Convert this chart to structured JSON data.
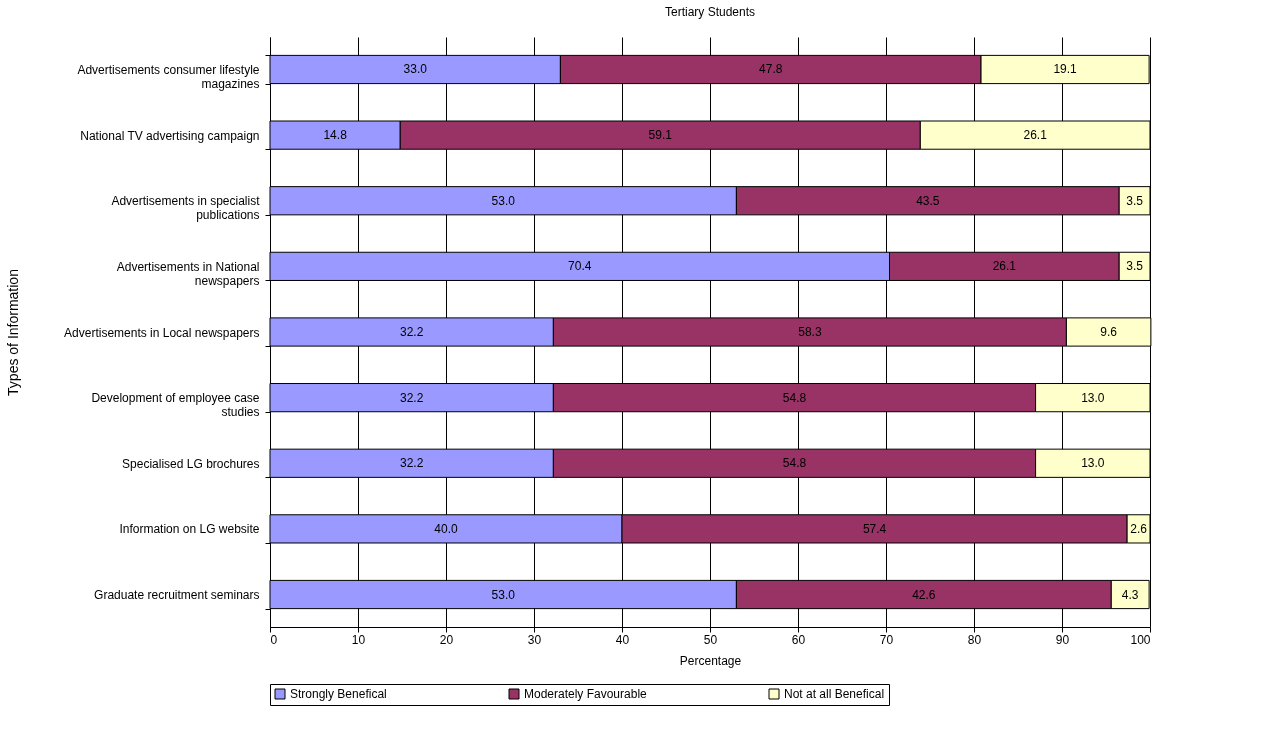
{
  "chart_data": {
    "type": "bar",
    "orientation": "horizontal",
    "stacked": true,
    "title": "Tertiary Students",
    "xlabel": "Percentage",
    "ylabel": "Types of Information",
    "categories": [
      "Advertisements consumer lifestyle magazines",
      "National TV advertising campaign",
      "Advertisements in specialist publications",
      "Advertisements in National newspapers",
      "Advertisements in Local newspapers",
      "Development of employee case studies",
      "Specialised LG brochures",
      "Information on LG website",
      "Graduate recruitment seminars"
    ],
    "series": [
      {
        "name": "Strongly Benefical",
        "color": "#9999ff",
        "values": [
          33.0,
          14.8,
          53.0,
          70.4,
          32.2,
          32.2,
          32.2,
          40.0,
          53.0
        ],
        "value_labels": [
          "33.0",
          "14.8",
          "53.0",
          "70.4",
          "32.2",
          "32.2",
          "32.2",
          "40.0",
          "53.0"
        ]
      },
      {
        "name": "Moderately Favourable",
        "color": "#993366",
        "values": [
          47.8,
          59.1,
          43.5,
          26.1,
          58.3,
          54.8,
          54.8,
          57.4,
          42.6
        ],
        "value_labels": [
          "47.8",
          "59.1",
          "43.5",
          "26.1",
          "58.3",
          "54.8",
          "54.8",
          "57.4",
          "42.6"
        ]
      },
      {
        "name": "Not at all Benefical",
        "color": "#ffffcc",
        "values": [
          19.1,
          26.1,
          3.5,
          3.5,
          9.6,
          13.0,
          13.0,
          2.6,
          4.3
        ],
        "value_labels": [
          "19.1",
          "26.1",
          "3.5",
          "3.5",
          "9.6",
          "13.0",
          "13.0",
          "2.6",
          "4.3"
        ]
      }
    ],
    "xlim": [
      0,
      100
    ],
    "xticks": [
      0,
      10,
      20,
      30,
      40,
      50,
      60,
      70,
      80,
      90,
      100
    ],
    "grid": "x",
    "legend": "bottom"
  }
}
